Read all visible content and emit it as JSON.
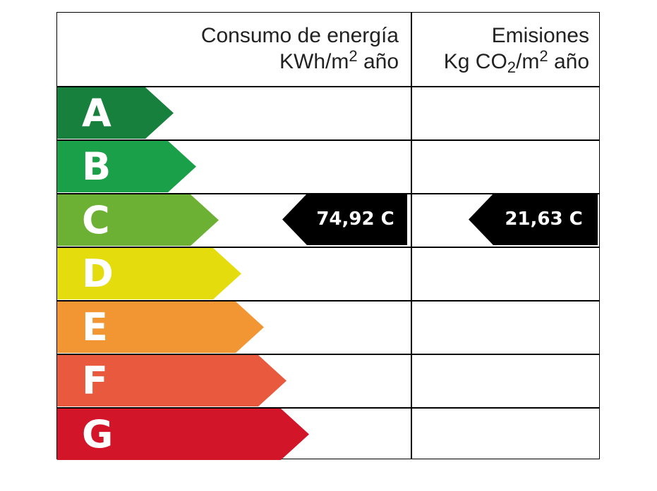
{
  "header": {
    "energy": {
      "line1": "Consumo de energía",
      "line2_pre": "KWh/m",
      "line2_sup": "2",
      "line2_post": " año"
    },
    "emissions": {
      "line1": "Emisiones",
      "line2_pre": "Kg CO",
      "line2_sub": "2",
      "line2_mid": "/m",
      "line2_sup": "2",
      "line2_post": " año"
    }
  },
  "bands": [
    {
      "letter": "A",
      "color": "#17803c"
    },
    {
      "letter": "B",
      "color": "#1ba04a"
    },
    {
      "letter": "C",
      "color": "#6cb134"
    },
    {
      "letter": "D",
      "color": "#e4dc0d"
    },
    {
      "letter": "E",
      "color": "#f29633"
    },
    {
      "letter": "F",
      "color": "#e8593d"
    },
    {
      "letter": "G",
      "color": "#d3152a"
    }
  ],
  "ratings": {
    "energy": "74,92 C",
    "emissions": "21,63 C"
  }
}
